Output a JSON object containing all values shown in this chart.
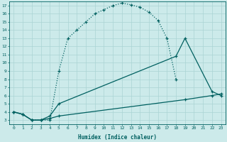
{
  "xlabel": "Humidex (Indice chaleur)",
  "bg_color": "#cceaea",
  "grid_color": "#aad4d4",
  "line_color": "#006060",
  "xlim": [
    -0.5,
    23.5
  ],
  "ylim": [
    2.5,
    17.5
  ],
  "xticks": [
    0,
    1,
    2,
    3,
    4,
    5,
    6,
    7,
    8,
    9,
    10,
    11,
    12,
    13,
    14,
    15,
    16,
    17,
    18,
    19,
    20,
    21,
    22,
    23
  ],
  "yticks": [
    3,
    4,
    5,
    6,
    7,
    8,
    9,
    10,
    11,
    12,
    13,
    14,
    15,
    16,
    17
  ],
  "line1_x": [
    0,
    1,
    2,
    3,
    4,
    5,
    6,
    7,
    8,
    9,
    10,
    11,
    12,
    13,
    14,
    15,
    16,
    17,
    18
  ],
  "line1_y": [
    4,
    3.7,
    3.0,
    3.0,
    3.0,
    9.0,
    13.0,
    14.0,
    15.0,
    16.0,
    16.5,
    17.0,
    17.3,
    17.1,
    16.8,
    16.2,
    15.2,
    13.0,
    8.0
  ],
  "line2_x": [
    0,
    1,
    2,
    3,
    4,
    5,
    18,
    19,
    22,
    23
  ],
  "line2_y": [
    4,
    3.7,
    3.0,
    3.0,
    3.5,
    5.0,
    10.8,
    13.0,
    6.5,
    6.0
  ],
  "line3_x": [
    0,
    1,
    2,
    3,
    4,
    5,
    19,
    22,
    23
  ],
  "line3_y": [
    4,
    3.7,
    3.0,
    3.0,
    3.2,
    3.5,
    5.5,
    6.0,
    6.2
  ]
}
